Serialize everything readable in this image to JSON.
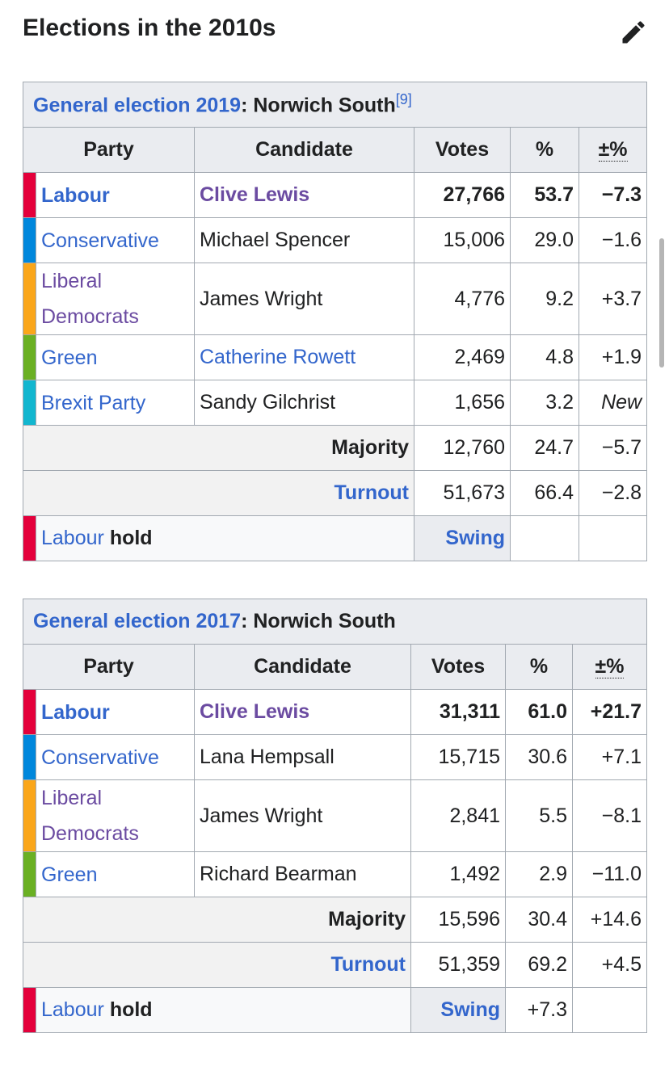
{
  "heading": "Elections in the 2010s",
  "tables": [
    {
      "caption_link": "General election 2019",
      "caption_rest": ": Norwich South",
      "caption_ref": "[9]",
      "headers": [
        "Party",
        "Candidate",
        "Votes",
        "%",
        "±%"
      ],
      "rows": [
        {
          "party": "Labour",
          "candidate": "Clive Lewis",
          "votes": "27,766",
          "pct": "53.7",
          "change": "−7.3",
          "color": "#e4003b",
          "party_text_color": "#3366cc",
          "candidate_text_color": "#6b4ba1",
          "bold": true
        },
        {
          "party": "Conservative",
          "candidate": "Michael Spencer",
          "votes": "15,006",
          "pct": "29.0",
          "change": "−1.6",
          "color": "#0087dc",
          "party_text_color": "#3366cc",
          "candidate_text_color": "#202122"
        },
        {
          "party": "Liberal Democrats",
          "candidate": "James Wright",
          "votes": "4,776",
          "pct": "9.2",
          "change": "+3.7",
          "color": "#faa61a",
          "party_text_color": "#6b4ba1",
          "candidate_text_color": "#202122"
        },
        {
          "party": "Green",
          "candidate": "Catherine Rowett",
          "votes": "2,469",
          "pct": "4.8",
          "change": "+1.9",
          "color": "#6ab023",
          "party_text_color": "#3366cc",
          "candidate_text_color": "#3366cc"
        },
        {
          "party": "Brexit Party",
          "candidate": "Sandy Gilchrist",
          "votes": "1,656",
          "pct": "3.2",
          "change": "New",
          "change_style": "italic",
          "color": "#12b6cf",
          "party_text_color": "#3366cc",
          "candidate_text_color": "#202122"
        }
      ],
      "summary": [
        {
          "label": "Majority",
          "votes": "12,760",
          "pct": "24.7",
          "change": "−5.7",
          "label_color": "#202122"
        },
        {
          "label": "Turnout",
          "votes": "51,673",
          "pct": "66.4",
          "change": "−2.8",
          "label_color": "#3366cc"
        }
      ],
      "result": {
        "party": "Labour",
        "word": "hold",
        "swing_label": "Swing",
        "color": "#e4003b"
      }
    },
    {
      "caption_link": "General election 2017",
      "caption_rest": ": Norwich South",
      "headers": [
        "Party",
        "Candidate",
        "Votes",
        "%",
        "±%"
      ],
      "rows": [
        {
          "party": "Labour",
          "candidate": "Clive Lewis",
          "votes": "31,311",
          "pct": "61.0",
          "change": "+21.7",
          "color": "#e4003b",
          "party_text_color": "#3366cc",
          "candidate_text_color": "#6b4ba1",
          "bold": true
        },
        {
          "party": "Conservative",
          "candidate": "Lana Hempsall",
          "votes": "15,715",
          "pct": "30.6",
          "change": "+7.1",
          "color": "#0087dc",
          "party_text_color": "#3366cc",
          "candidate_text_color": "#202122"
        },
        {
          "party": "Liberal Democrats",
          "candidate": "James Wright",
          "votes": "2,841",
          "pct": "5.5",
          "change": "−8.1",
          "color": "#faa61a",
          "party_text_color": "#6b4ba1",
          "candidate_text_color": "#202122"
        },
        {
          "party": "Green",
          "candidate": "Richard Bearman",
          "votes": "1,492",
          "pct": "2.9",
          "change": "−11.0",
          "color": "#6ab023",
          "party_text_color": "#3366cc",
          "candidate_text_color": "#202122"
        }
      ],
      "summary": [
        {
          "label": "Majority",
          "votes": "15,596",
          "pct": "30.4",
          "change": "+14.6",
          "label_color": "#202122"
        },
        {
          "label": "Turnout",
          "votes": "51,359",
          "pct": "69.2",
          "change": "+4.5",
          "label_color": "#3366cc"
        }
      ],
      "result": {
        "party": "Labour",
        "word": "hold",
        "swing_label": "Swing",
        "swing": "+7.3",
        "color": "#e4003b"
      }
    }
  ]
}
